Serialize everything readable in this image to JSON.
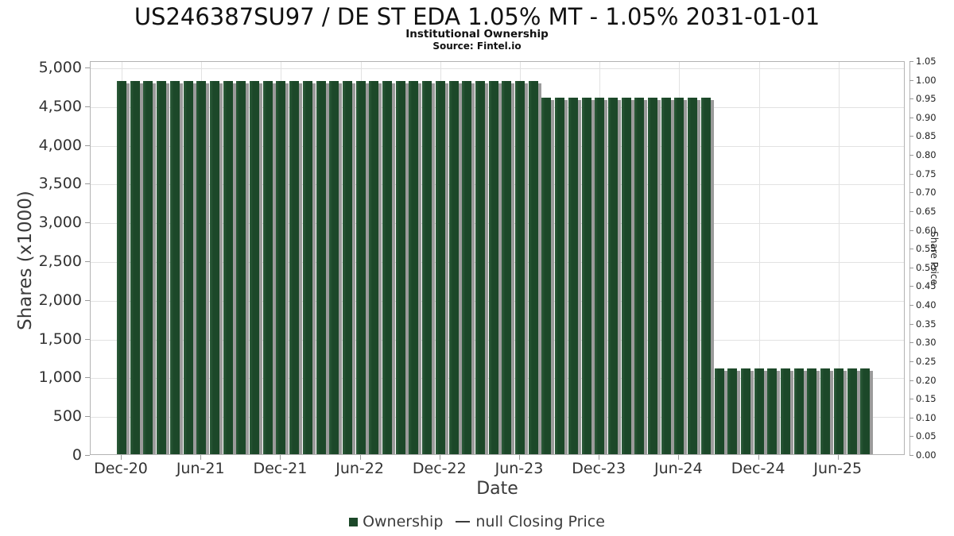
{
  "chart_data": {
    "type": "bar",
    "title": "US246387SU97 / DE ST EDA 1.05% MT - 1.05% 2031-01-01",
    "subtitle": "Institutional Ownership",
    "source": "Source: Fintel.io",
    "xlabel": "Date",
    "ylabel_left": "Shares (x1000)",
    "ylabel_right": "Share Price",
    "y_left": {
      "min": 0,
      "max": 5000,
      "step": 500
    },
    "y_right": {
      "min": 0.0,
      "max": 1.05,
      "step": 0.05
    },
    "x_tick_labels": [
      "Dec-20",
      "Jun-21",
      "Dec-21",
      "Jun-22",
      "Dec-22",
      "Jun-23",
      "Dec-23",
      "Jun-24",
      "Dec-24",
      "Jun-25"
    ],
    "x_tick_indices": [
      0,
      6,
      12,
      18,
      24,
      30,
      36,
      42,
      48,
      54
    ],
    "categories": [
      "Dec-20",
      "Jan-21",
      "Feb-21",
      "Mar-21",
      "Apr-21",
      "May-21",
      "Jun-21",
      "Jul-21",
      "Aug-21",
      "Sep-21",
      "Oct-21",
      "Nov-21",
      "Dec-21",
      "Jan-22",
      "Feb-22",
      "Mar-22",
      "Apr-22",
      "May-22",
      "Jun-22",
      "Jul-22",
      "Aug-22",
      "Sep-22",
      "Oct-22",
      "Nov-22",
      "Dec-22",
      "Jan-23",
      "Feb-23",
      "Mar-23",
      "Apr-23",
      "May-23",
      "Jun-23",
      "Jul-23",
      "Aug-23",
      "Sep-23",
      "Oct-23",
      "Nov-23",
      "Dec-23",
      "Jan-24",
      "Feb-24",
      "Mar-24",
      "Apr-24",
      "May-24",
      "Jun-24",
      "Jul-24",
      "Aug-24",
      "Sep-24",
      "Oct-24",
      "Nov-24",
      "Dec-24",
      "Jan-25",
      "Feb-25",
      "Mar-25",
      "Apr-25",
      "May-25",
      "Jun-25",
      "Jul-25",
      "Aug-25"
    ],
    "values": [
      4840,
      4840,
      4840,
      4840,
      4840,
      4840,
      4840,
      4840,
      4840,
      4840,
      4840,
      4840,
      4840,
      4840,
      4840,
      4840,
      4840,
      4840,
      4840,
      4840,
      4840,
      4840,
      4840,
      4840,
      4840,
      4840,
      4840,
      4840,
      4840,
      4840,
      4840,
      4840,
      4620,
      4620,
      4620,
      4620,
      4620,
      4620,
      4620,
      4620,
      4620,
      4620,
      4620,
      4620,
      4620,
      1130,
      1130,
      1130,
      1130,
      1130,
      1130,
      1130,
      1130,
      1130,
      1130,
      1130,
      1130
    ],
    "series_name": "Ownership",
    "legend": {
      "ownership_label": "Ownership",
      "price_label": "null Closing Price"
    },
    "colors": {
      "bar": "#1c4829",
      "bar_shadow": "#9b9b9b",
      "grid": "#e2e2e2",
      "axis_border": "#b3b3b3",
      "tick": "#999999",
      "text": "#333333"
    },
    "layout": {
      "grid": "on",
      "legend_position": "bottom-center"
    }
  }
}
